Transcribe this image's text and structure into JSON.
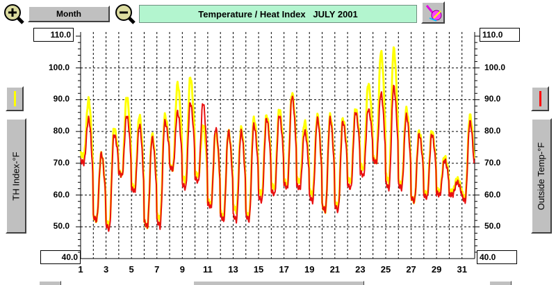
{
  "toolbar": {
    "month_label": "Month",
    "title": "Temperature / Heat Index   JULY 2001",
    "zoom_in_icon": "magnifier-plus-icon",
    "zoom_out_icon": "magnifier-minus-icon",
    "paint_icon": "paint-brush-icon"
  },
  "left_panel": {
    "axis_label": "TH Index-°F",
    "top_value": "110.0",
    "bottom_value": "40.0",
    "legend_color": "#ffff00"
  },
  "right_panel": {
    "axis_label": "Outside Temp-°F",
    "top_value": "110.0",
    "bottom_value": "40.0",
    "legend_color": "#ff0000"
  },
  "colors": {
    "heat_index": "#ffff00",
    "temperature": "#e81010",
    "title_bg": "#b3f5cf",
    "button_face": "#c0c0c0"
  },
  "chart_data": {
    "type": "line",
    "xlabel": "",
    "ylabel": "TH Index-°F",
    "ylabel_right": "Outside Temp-°F",
    "xlim": [
      1,
      32
    ],
    "ylim": [
      40,
      110
    ],
    "x_ticks": [
      "1",
      "3",
      "5",
      "7",
      "9",
      "11",
      "13",
      "15",
      "17",
      "19",
      "21",
      "23",
      "25",
      "27",
      "29",
      "31"
    ],
    "y_ticks": [
      "50.0",
      "60.0",
      "70.0",
      "80.0",
      "90.0",
      "100.0",
      "110.0"
    ],
    "grid": true,
    "days": [
      1,
      2,
      3,
      4,
      5,
      6,
      7,
      8,
      9,
      10,
      11,
      12,
      13,
      14,
      15,
      16,
      17,
      18,
      19,
      20,
      21,
      22,
      23,
      24,
      25,
      26,
      27,
      28,
      29,
      30,
      31
    ],
    "series": [
      {
        "name": "TH Index-°F",
        "color": "#ffff00",
        "daily_max": [
          90,
          73,
          81,
          91,
          85,
          79,
          85,
          95,
          97,
          82,
          80,
          80,
          81,
          84,
          85,
          87,
          92,
          83,
          85,
          85,
          84,
          87,
          95,
          105,
          106,
          87,
          80,
          80,
          72,
          65,
          85
        ],
        "daily_min": [
          72,
          52,
          50,
          66,
          62,
          50,
          52,
          68,
          64,
          66,
          57,
          53,
          55,
          53,
          60,
          62,
          63,
          64,
          60,
          55,
          56,
          64,
          68,
          70,
          64,
          63,
          58,
          60,
          61,
          61,
          59
        ]
      },
      {
        "name": "Outside Temp-°F",
        "color": "#e81010",
        "daily_max": [
          84,
          73,
          79,
          85,
          82,
          78,
          83,
          86,
          89,
          89,
          81,
          80,
          80,
          82,
          84,
          85,
          91,
          80,
          84,
          84,
          83,
          86,
          87,
          92,
          94,
          85,
          79,
          79,
          71,
          64,
          83
        ],
        "daily_min": [
          70,
          52,
          49,
          66,
          61,
          50,
          50,
          68,
          62,
          64,
          56,
          52,
          52,
          52,
          58,
          60,
          62,
          62,
          58,
          55,
          55,
          62,
          66,
          70,
          62,
          62,
          58,
          59,
          60,
          60,
          58
        ]
      }
    ]
  }
}
